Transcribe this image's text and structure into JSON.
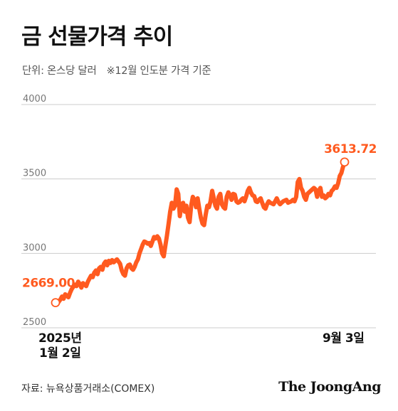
{
  "title": "금 선물가격 추이",
  "subtitle": {
    "unit": "단위: 온스당 달러",
    "note": "※12월 인도분 가격 기준"
  },
  "source": "자료: 뉴욕상품거래소(COMEX)",
  "brand": "The JoongAng",
  "colors": {
    "line": "#ff5a1f",
    "grid": "#cccccc",
    "axis_text": "#777777"
  },
  "chart_data": {
    "type": "line",
    "ylim": [
      2500,
      4000
    ],
    "yticks": [
      "4000",
      "3500",
      "3000",
      "2500"
    ],
    "ytick_values": [
      4000,
      3500,
      3000,
      2500
    ],
    "grid": true,
    "x_labels": {
      "start_year": "2025년",
      "start_date": "1월 2일",
      "end_date": "9월 3일"
    },
    "start_label": "2669.00",
    "end_label": "3613.72",
    "series": [
      {
        "values": [
          2669.0,
          2660,
          2675,
          2690,
          2710,
          2695,
          2725,
          2715,
          2705,
          2735,
          2760,
          2775,
          2790,
          2780,
          2810,
          2795,
          2770,
          2800,
          2790,
          2780,
          2810,
          2830,
          2850,
          2840,
          2870,
          2885,
          2860,
          2900,
          2910,
          2890,
          2930,
          2945,
          2920,
          2950,
          2935,
          2955,
          2940,
          2950,
          2960,
          2945,
          2930,
          2885,
          2860,
          2850,
          2900,
          2920,
          2925,
          2900,
          2890,
          2910,
          2940,
          2960,
          3000,
          3030,
          3060,
          3080,
          3075,
          3065,
          3070,
          3050,
          3080,
          3110,
          3100,
          3115,
          3100,
          3060,
          3000,
          2980,
          3050,
          3120,
          3200,
          3280,
          3340,
          3300,
          3320,
          3430,
          3400,
          3250,
          3330,
          3340,
          3280,
          3320,
          3240,
          3210,
          3320,
          3380,
          3360,
          3310,
          3370,
          3300,
          3240,
          3200,
          3190,
          3260,
          3320,
          3310,
          3350,
          3420,
          3370,
          3320,
          3300,
          3380,
          3400,
          3330,
          3310,
          3300,
          3380,
          3410,
          3390,
          3360,
          3400,
          3395,
          3350,
          3340,
          3345,
          3360,
          3370,
          3350,
          3380,
          3420,
          3440,
          3410,
          3390,
          3385,
          3350,
          3345,
          3360,
          3370,
          3340,
          3310,
          3300,
          3330,
          3350,
          3340,
          3335,
          3330,
          3350,
          3370,
          3345,
          3330,
          3340,
          3350,
          3355,
          3360,
          3340,
          3345,
          3350,
          3360,
          3350,
          3380,
          3480,
          3500,
          3440,
          3420,
          3380,
          3360,
          3400,
          3410,
          3420,
          3430,
          3440,
          3430,
          3380,
          3420,
          3440,
          3380,
          3390,
          3370,
          3380,
          3400,
          3390,
          3420,
          3430,
          3450,
          3440,
          3470,
          3520,
          3540,
          3580,
          3613.72
        ]
      }
    ]
  }
}
